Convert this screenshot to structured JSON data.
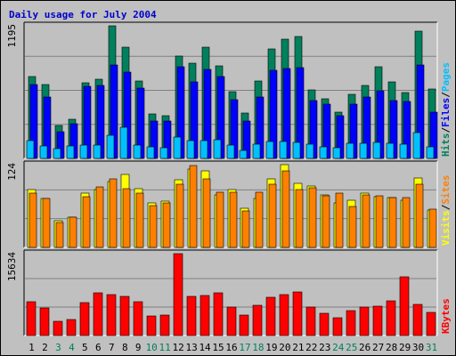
{
  "chart_data": {
    "title": "Daily usage for July 2004",
    "type": "bar",
    "categories": [
      "1",
      "2",
      "3",
      "4",
      "5",
      "6",
      "7",
      "8",
      "9",
      "10",
      "11",
      "12",
      "13",
      "14",
      "15",
      "16",
      "17",
      "18",
      "19",
      "20",
      "21",
      "22",
      "23",
      "24",
      "25",
      "26",
      "27",
      "28",
      "29",
      "30",
      "31"
    ],
    "weekend_days": [
      "3",
      "4",
      "10",
      "11",
      "17",
      "18",
      "24",
      "25",
      "31"
    ],
    "colors": {
      "hits": "#00805c",
      "files": "#0000ff",
      "pages": "#00c0ff",
      "visits": "#ffff00",
      "sites": "#ff8000",
      "kbytes": "#ff0000",
      "weekday_tick": "#000000",
      "weekend_tick": "#00805c",
      "title": "#0000cc",
      "background": "#c0c0c0"
    },
    "panels": [
      {
        "name": "hits_files_pages",
        "ymax_label": "1195",
        "ymax": 1195,
        "legend": [
          {
            "key": "pages",
            "text": "Pages"
          },
          {
            "key": "sep",
            "text": "/"
          },
          {
            "key": "files",
            "text": "Files"
          },
          {
            "key": "sep",
            "text": "/"
          },
          {
            "key": "hits",
            "text": "Hits"
          }
        ],
        "series": [
          {
            "name": "Hits",
            "key": "hits",
            "values": [
              739,
              664,
              299,
              352,
              684,
              714,
              1195,
              1005,
              697,
              399,
              386,
              925,
              857,
              1005,
              832,
              599,
              409,
              699,
              989,
              1077,
              1095,
              614,
              539,
              419,
              579,
              655,
              827,
              689,
              592,
              1144,
              625
            ]
          },
          {
            "name": "Files",
            "key": "files",
            "values": [
              664,
              550,
              240,
              311,
              646,
              661,
              844,
              775,
              632,
              339,
              334,
              829,
              690,
              802,
              740,
              529,
              339,
              555,
              790,
              810,
              820,
              522,
              490,
              382,
              490,
              557,
              611,
              518,
              510,
              839,
              420
            ]
          },
          {
            "name": "Pages",
            "key": "pages",
            "values": [
              158,
              112,
              90,
              112,
              121,
              121,
              211,
              283,
              121,
              104,
              97,
              190,
              159,
              158,
              167,
              121,
              75,
              128,
              149,
              150,
              144,
              125,
              102,
              96,
              140,
              134,
              141,
              135,
              132,
              233,
              105
            ]
          }
        ]
      },
      {
        "name": "visits_sites",
        "ymax_label": "124",
        "ymax": 124,
        "legend": [
          {
            "key": "sites",
            "text": "Sites"
          },
          {
            "key": "sep",
            "text": "/"
          },
          {
            "key": "visits",
            "text": "Visits"
          }
        ],
        "series": [
          {
            "name": "Visits",
            "key": "visits",
            "values": [
              87,
              73,
              40,
              45,
              81,
              86,
              99,
              109,
              88,
              66,
              69,
              101,
              117,
              115,
              79,
              87,
              59,
              73,
              103,
              124,
              96,
              92,
              78,
              67,
              70,
              81,
              76,
              74,
              70,
              104,
              56
            ]
          },
          {
            "name": "Sites",
            "key": "sites",
            "values": [
              81,
              73,
              37,
              45,
              76,
              91,
              103,
              88,
              81,
              63,
              66,
              94,
              123,
              102,
              82,
              83,
              54,
              83,
              95,
              114,
              86,
              89,
              77,
              81,
              61,
              79,
              77,
              74,
              74,
              95,
              57
            ]
          }
        ]
      },
      {
        "name": "kbytes",
        "ymax_label": "15634",
        "ymax": 15634,
        "legend": [
          {
            "key": "kbytes",
            "text": "KBytes"
          }
        ],
        "series": [
          {
            "name": "KBytes",
            "key": "kbytes",
            "values": [
              6447,
              5287,
              2800,
              3064,
              6253,
              8231,
              7763,
              7470,
              6395,
              3784,
              3979,
              15634,
              7421,
              7566,
              8182,
              5463,
              3921,
              5796,
              7361,
              7752,
              8387,
              5467,
              4208,
              3405,
              4767,
              5452,
              5612,
              6564,
              11264,
              5970,
              4439
            ]
          }
        ]
      }
    ]
  }
}
